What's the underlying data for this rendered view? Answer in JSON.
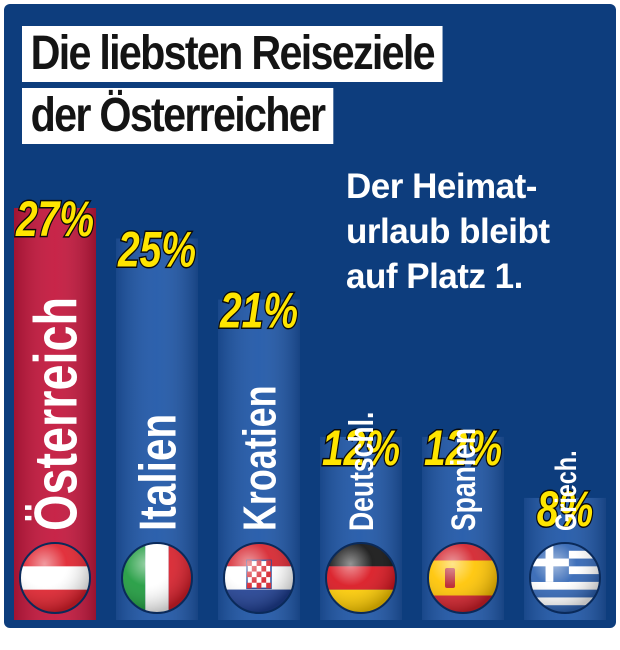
{
  "title": {
    "line1": "Die liebsten Reiseziele",
    "line2": "der Österreicher"
  },
  "note": [
    "Der Heimat-",
    "urlaub bleibt",
    "auf Platz 1."
  ],
  "colors": {
    "background": "#0d3d7d",
    "bar": "#1f57a8",
    "bar_highlight": "#c4173d",
    "percent_text": "#ffe500",
    "title_box": "#ffffff"
  },
  "chart_data": {
    "type": "bar",
    "title": "Die liebsten Reiseziele der Österreicher",
    "categories": [
      "Österreich",
      "Italien",
      "Kroatien",
      "Deutschl.",
      "Spanien",
      "Griech."
    ],
    "values": [
      27,
      25,
      21,
      12,
      12,
      8
    ],
    "labels": [
      "27%",
      "25%",
      "21%",
      "12%",
      "12%",
      "8%"
    ],
    "flags": [
      "austria-flag-icon",
      "italy-flag-icon",
      "croatia-flag-icon",
      "germany-flag-icon",
      "spain-flag-icon",
      "greece-flag-icon"
    ],
    "highlight_index": 0,
    "ylim": [
      0,
      27
    ],
    "grid": false,
    "legend": "none"
  }
}
